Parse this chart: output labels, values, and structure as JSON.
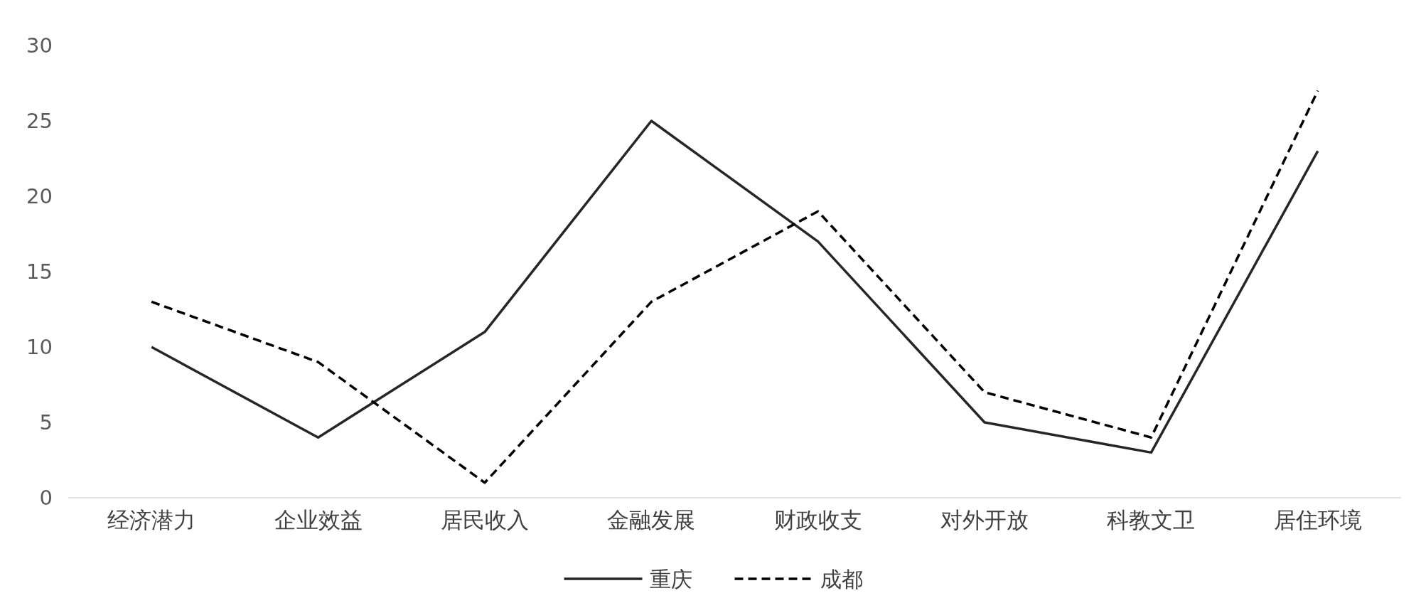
{
  "chart_data": {
    "type": "line",
    "categories": [
      "经济潜力",
      "企业效益",
      "居民收入",
      "金融发展",
      "财政收支",
      "对外开放",
      "科教文卫",
      "居住环境"
    ],
    "series": [
      {
        "name": "重庆",
        "color": "#262626",
        "line_style": "solid",
        "values": [
          10,
          4,
          11,
          25,
          17,
          5,
          3,
          23
        ]
      },
      {
        "name": "成都",
        "color": "#000000",
        "line_style": "dashed",
        "values": [
          13,
          9,
          1,
          13,
          19,
          7,
          4,
          27
        ]
      }
    ],
    "ylim": [
      0,
      30
    ],
    "yticks": [
      0,
      5,
      10,
      15,
      20,
      25,
      30
    ],
    "grid": false,
    "legend": "bottom"
  }
}
